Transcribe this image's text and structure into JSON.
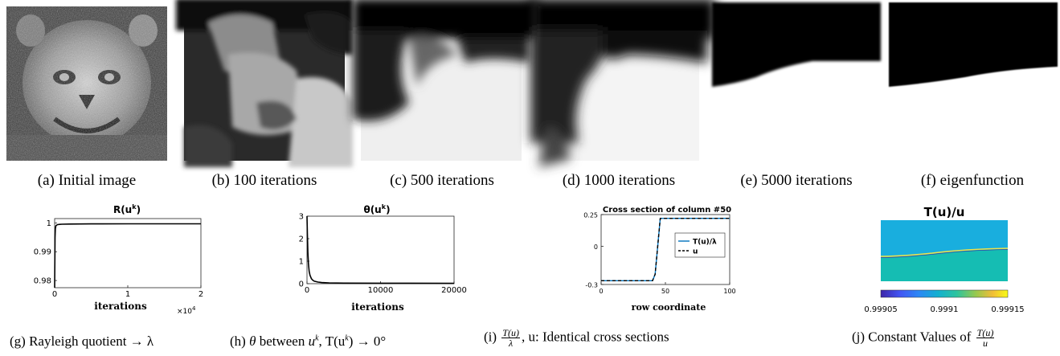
{
  "captions": {
    "a": "(a) Initial image",
    "b": "(b) 100 iterations",
    "c": "(c) 500 iterations",
    "d": "(d) 1000 iterations",
    "e": "(e) 5000 iterations",
    "f": "(f) eigenfunction",
    "g": "(g) Rayleigh quotient → λ",
    "h_prefix": "(h) ",
    "h_theta": "θ",
    "h_mid": " between ",
    "h_vars": "u",
    "h_k": "k",
    "h_T": ", T(u",
    "h_k2": "k",
    "h_tail": ") → 0°",
    "i_prefix": "(i) ",
    "i_num": "T(u)",
    "i_den": "λ",
    "i_tail": ", u: Identical cross sections",
    "j_prefix": "(j) Constant Values of ",
    "j_num": "T(u)",
    "j_den": "u"
  },
  "chart_data": [
    {
      "type": "line",
      "title": "R(u^k)",
      "title_main": "R(u",
      "title_sup": "k",
      "title_end": ")",
      "xlabel": "iterations",
      "x_multiplier": "×10",
      "x_multiplier_exp": "4",
      "xticks": [
        "0",
        "1",
        "2"
      ],
      "yticks": [
        "0.98",
        "0.99",
        "1"
      ],
      "xlim": [
        0,
        2
      ],
      "ylim": [
        0.9775,
        1.0015
      ],
      "series": [
        {
          "x": [
            0,
            0.003,
            0.006,
            0.01,
            0.015,
            0.02,
            0.04,
            0.07,
            0.1,
            0.2,
            0.5,
            1.0,
            1.5,
            2.0
          ],
          "y": [
            0.9775,
            0.988,
            0.995,
            0.998,
            0.9988,
            0.9991,
            0.9994,
            0.9995,
            0.99955,
            0.9996,
            0.99965,
            0.9997,
            0.9997,
            0.9997
          ]
        }
      ]
    },
    {
      "type": "line",
      "title_main": "θ(u",
      "title_sup": "k",
      "title_end": ")",
      "xlabel": "iterations",
      "xticks": [
        "0",
        "10000",
        "20000"
      ],
      "yticks": [
        "0",
        "1",
        "2",
        "3"
      ],
      "xlim": [
        0,
        20000
      ],
      "ylim": [
        0,
        3
      ],
      "series": [
        {
          "x": [
            0,
            60,
            120,
            200,
            300,
            400,
            600,
            800,
            1000,
            1500,
            2000,
            3000,
            5000,
            10000,
            20000
          ],
          "y": [
            3.0,
            2.2,
            1.4,
            0.9,
            0.55,
            0.38,
            0.22,
            0.15,
            0.11,
            0.07,
            0.05,
            0.035,
            0.025,
            0.02,
            0.015
          ]
        }
      ]
    },
    {
      "type": "line",
      "title": "Cross section of column #50",
      "xlabel": "row coordinate",
      "xticks": [
        "0",
        "50",
        "100"
      ],
      "yticks": [
        "-0.3",
        "0",
        "0.25"
      ],
      "xlim": [
        0,
        100
      ],
      "ylim": [
        -0.3,
        0.25
      ],
      "legend": "top-right",
      "series": [
        {
          "name": "T(u)/λ",
          "color": "#0072bd",
          "style": "solid",
          "x": [
            0,
            40,
            42,
            44,
            46,
            100
          ],
          "y": [
            -0.27,
            -0.27,
            -0.22,
            0.0,
            0.22,
            0.22
          ]
        },
        {
          "name": "u",
          "color": "#000000",
          "style": "dashed",
          "x": [
            0,
            40,
            42,
            44,
            46,
            100
          ],
          "y": [
            -0.27,
            -0.27,
            -0.22,
            0.0,
            0.22,
            0.22
          ]
        }
      ]
    },
    {
      "type": "heatmap",
      "title": "T(u)/u",
      "colorbar_ticks": [
        "0.99905",
        "0.9991",
        "0.99915"
      ],
      "colorbar_range": [
        0.99905,
        0.99915
      ],
      "top_value_color": "#19aede",
      "bottom_value_color": "#15bdb3"
    }
  ]
}
